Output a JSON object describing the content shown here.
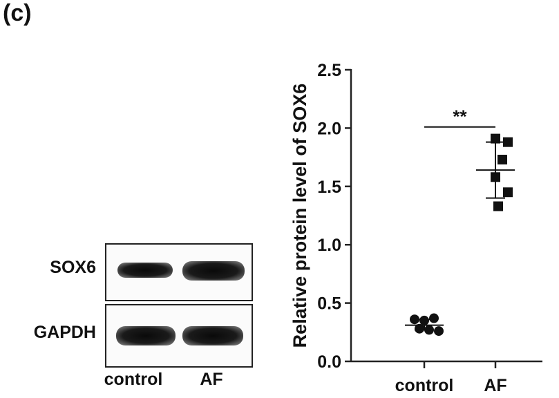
{
  "panel_label": "(c)",
  "blot": {
    "rows": [
      {
        "label": "SOX6",
        "band_intensity": [
          0.75,
          1.0
        ]
      },
      {
        "label": "GAPDH",
        "band_intensity": [
          1.0,
          1.0
        ]
      }
    ],
    "lanes": [
      "control",
      "AF"
    ]
  },
  "chart_data": {
    "type": "scatter",
    "title": "",
    "ylabel": "Relative protein level of SOX6",
    "xlabel": "",
    "categories": [
      "control",
      "AF"
    ],
    "ylim": [
      0,
      2.5
    ],
    "yticks": [
      "0.0",
      "0.5",
      "1.0",
      "1.5",
      "2.0",
      "2.5"
    ],
    "grid": false,
    "series": [
      {
        "category": "control",
        "marker": "circle",
        "values": [
          0.36,
          0.35,
          0.37,
          0.28,
          0.27,
          0.26
        ],
        "mean": 0.31,
        "sd_upper": 0.36,
        "sd_lower": 0.27
      },
      {
        "category": "AF",
        "marker": "square",
        "values": [
          1.91,
          1.88,
          1.73,
          1.58,
          1.45,
          1.33
        ],
        "mean": 1.64,
        "sd_upper": 1.88,
        "sd_lower": 1.4
      }
    ],
    "annotations": [
      {
        "text": "**",
        "between": [
          "control",
          "AF"
        ],
        "y": 2.01
      }
    ],
    "colors": {
      "points": "#111111",
      "axis": "#222222"
    }
  }
}
